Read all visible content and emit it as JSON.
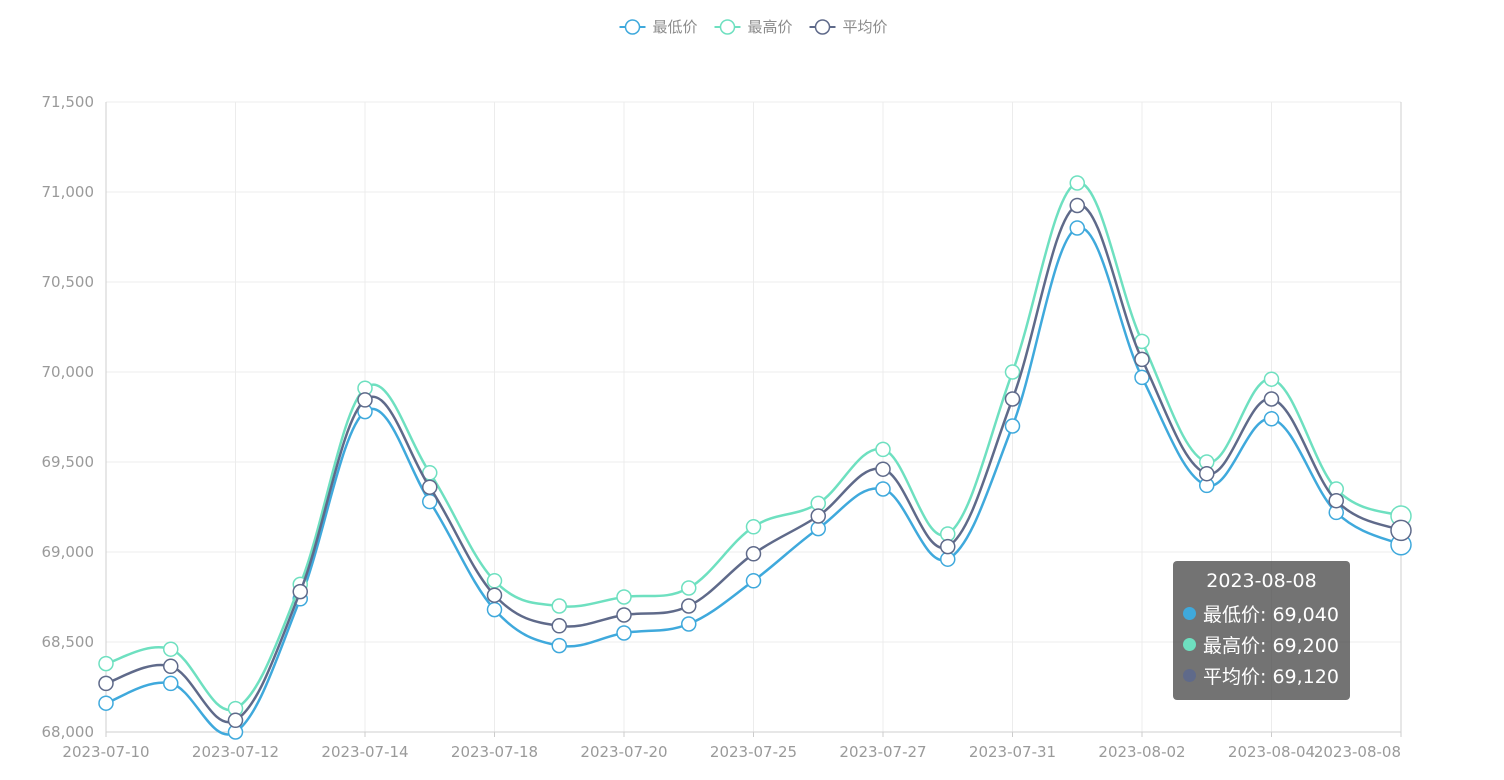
{
  "chart_data": {
    "type": "line",
    "smooth": true,
    "x": [
      "2023-07-10",
      "2023-07-11",
      "2023-07-12",
      "2023-07-13",
      "2023-07-14",
      "2023-07-17",
      "2023-07-18",
      "2023-07-19",
      "2023-07-20",
      "2023-07-21",
      "2023-07-25",
      "2023-07-26",
      "2023-07-27",
      "2023-07-28",
      "2023-07-31",
      "2023-08-01",
      "2023-08-02",
      "2023-08-03",
      "2023-08-04",
      "2023-08-07",
      "2023-08-08"
    ],
    "x_tick_labels": [
      "2023-07-10",
      "2023-07-12",
      "2023-07-14",
      "2023-07-18",
      "2023-07-20",
      "2023-07-25",
      "2023-07-27",
      "2023-07-31",
      "2023-08-02",
      "2023-08-04",
      "2023-08-08"
    ],
    "series": [
      {
        "name": "最低价",
        "color": "#3fa9dc",
        "values": [
          68160,
          68270,
          68000,
          68740,
          69780,
          69280,
          68680,
          68480,
          68550,
          68600,
          68840,
          69130,
          69350,
          68960,
          69700,
          70800,
          69970,
          69370,
          69740,
          69220,
          69040
        ]
      },
      {
        "name": "最高价",
        "color": "#6ee0c0",
        "values": [
          68380,
          68460,
          68130,
          68820,
          69910,
          69440,
          68840,
          68700,
          68750,
          68800,
          69140,
          69270,
          69570,
          69100,
          70000,
          71050,
          70170,
          69500,
          69960,
          69350,
          69200
        ]
      },
      {
        "name": "平均价",
        "color": "#5f6a8a",
        "values": [
          68270,
          68365,
          68065,
          68780,
          69845,
          69360,
          68760,
          68590,
          68650,
          68700,
          68990,
          69200,
          69460,
          69030,
          69850,
          70925,
          70070,
          69435,
          69850,
          69285,
          69120
        ]
      }
    ],
    "y_ticks": [
      "68,000",
      "68,500",
      "69,000",
      "69,500",
      "70,000",
      "70,500",
      "71,000",
      "71,500"
    ],
    "ylim": [
      68000,
      71500
    ],
    "grid": true,
    "legend_position": "top-center",
    "tooltip": {
      "title": "2023-08-08",
      "rows": [
        {
          "label": "最低价: 69,040",
          "color": "#3fa9dc"
        },
        {
          "label": "最高价: 69,200",
          "color": "#6ee0c0"
        },
        {
          "label": "平均价: 69,120",
          "color": "#5f6a8a"
        }
      ]
    }
  }
}
